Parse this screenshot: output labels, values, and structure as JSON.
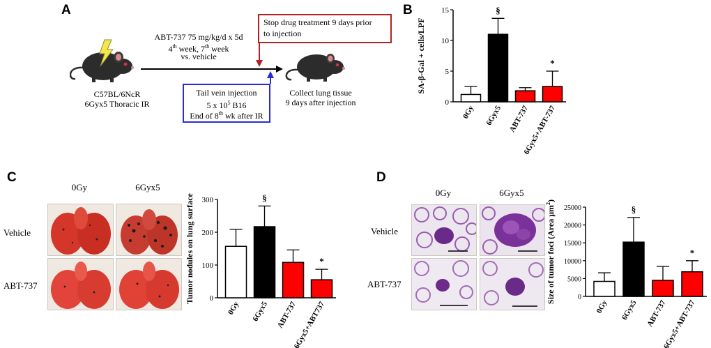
{
  "panels": {
    "a": "A",
    "b": "B",
    "c": "C",
    "d": "D"
  },
  "schematic": {
    "mouse_left_label_1": "C57BL/6NcR",
    "mouse_left_label_2": "6Gyx5  Thoracic IR",
    "treatment_line_1": "ABT-737 75 mg/kg/d x 5d",
    "treatment_line_2a": "4",
    "treatment_line_2a_sup": "th",
    "treatment_line_2b": " week, 7",
    "treatment_line_2b_sup": "th",
    "treatment_line_2c": " week",
    "treatment_line_3": "vs. vehicle",
    "stop_box_line_1": "Stop drug treatment 9 days prior",
    "stop_box_line_2": "to injection",
    "inject_box_line_1": "Tail vein injection",
    "inject_box_line_2a": "5 x 10",
    "inject_box_line_2_sup": "5",
    "inject_box_line_2b": " B16",
    "inject_box_line_3a": "End of 8",
    "inject_box_line_3_sup": "th",
    "inject_box_line_3b": " wk after IR",
    "collect_line_1": "Collect lung tissue",
    "collect_line_2": "9 days after injection",
    "colors": {
      "stop_box": "#b22222",
      "inject_box": "#2a2ad8",
      "mouse": "#2c2c2c",
      "bolt": "#f2e84a"
    }
  },
  "panel_c_photos": {
    "col_0": "0Gy",
    "col_1": "6Gyx5",
    "row_0": "Vehicle",
    "row_1": "ABT-737"
  },
  "panel_d_photos": {
    "col_0": "0Gy",
    "col_1": "6Gyx5",
    "row_0": "Vehicle",
    "row_1": "ABT-737"
  },
  "chart_data": [
    {
      "id": "B",
      "type": "bar",
      "ylabel": "SA-β-Gal + cells/LPF",
      "categories": [
        "0Gy",
        "6Gyx5",
        "ABT-737",
        "6Gyx5+ABT-737"
      ],
      "values": [
        1.2,
        11.0,
        1.8,
        2.5
      ],
      "errors": [
        1.3,
        2.6,
        0.5,
        2.5
      ],
      "colors": [
        "#ffffff",
        "#000000",
        "#ff0000",
        "#ff0000"
      ],
      "ylim": [
        0,
        15
      ],
      "yticks": [
        0,
        5,
        10,
        15
      ],
      "annotations": [
        "",
        "§",
        "",
        "*"
      ]
    },
    {
      "id": "C",
      "type": "bar",
      "ylabel": "Tumor nodules on lung surface",
      "categories": [
        "0Gy",
        "6Gyx5",
        "ABT-737",
        "6Gyx5+ABT737"
      ],
      "values": [
        157,
        217,
        108,
        55
      ],
      "errors": [
        52,
        63,
        38,
        32
      ],
      "colors": [
        "#ffffff",
        "#000000",
        "#ff0000",
        "#ff0000"
      ],
      "ylim": [
        0,
        300
      ],
      "yticks": [
        0,
        100,
        200,
        300
      ],
      "annotations": [
        "",
        "§",
        "",
        "*"
      ]
    },
    {
      "id": "D",
      "type": "bar",
      "ylabel": "Size of tumor foci (Area μm",
      "ylabel_sup": "2",
      "ylabel_end": ")",
      "categories": [
        "0Gy",
        "6Gyx5",
        "ABT-737",
        "6Gyx5+ABT-737"
      ],
      "values": [
        4200,
        15200,
        4500,
        6900
      ],
      "errors": [
        2400,
        6900,
        3900,
        3100
      ],
      "colors": [
        "#ffffff",
        "#000000",
        "#ff0000",
        "#ff0000"
      ],
      "ylim": [
        0,
        25000
      ],
      "yticks": [
        0,
        5000,
        10000,
        15000,
        20000,
        25000
      ],
      "annotations": [
        "",
        "§",
        "",
        "*"
      ]
    }
  ]
}
